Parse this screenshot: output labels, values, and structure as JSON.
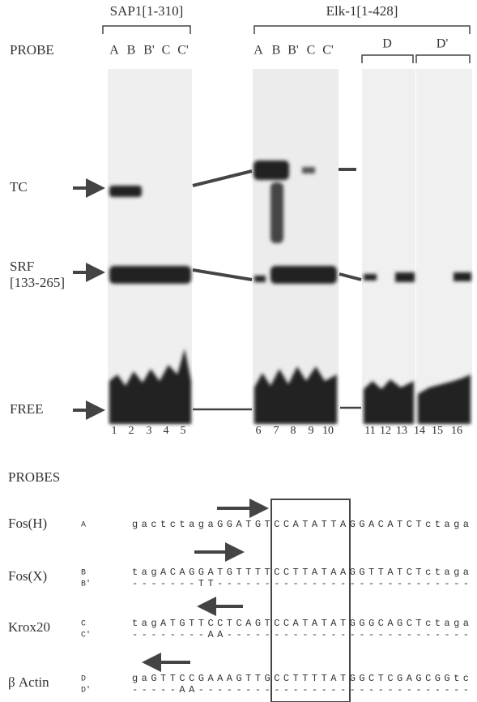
{
  "figure": {
    "headers": [
      "SAP1[1-310]",
      "Elk-1[1-428]"
    ],
    "probe_label": "PROBE",
    "lanes_1": [
      "A",
      "B",
      "B'",
      "C",
      "C'"
    ],
    "lanes_2": [
      "A",
      "B",
      "B'",
      "C",
      "C'"
    ],
    "lanes_3": [
      "D",
      "D'"
    ],
    "band_labels": {
      "tc": "TC",
      "srf": "SRF",
      "srf_range": "[133-265]",
      "free": "FREE"
    },
    "lane_numbers": [
      "1",
      "2",
      "3",
      "4",
      "5",
      "6",
      "7",
      "8",
      "9",
      "10",
      "11",
      "12",
      "13",
      "14",
      "15",
      "16"
    ]
  },
  "probes": {
    "title": "PROBES",
    "rows": [
      {
        "name": "Fos(H)",
        "entries": [
          {
            "id": "A",
            "seq": "gactctagaGGATGTCCATATTAGGACATCTctaga"
          }
        ]
      },
      {
        "name": "Fos(X)",
        "entries": [
          {
            "id": "B",
            "seq": "tagACAGGATGTTTTCCTTATAAGGTTATCTctaga"
          },
          {
            "id": "B'",
            "seq": "-------TT---------------------------"
          }
        ]
      },
      {
        "name": "Krox20",
        "entries": [
          {
            "id": "C",
            "seq": "tagATGTTCCTCAGTCCATATATGGGCAGCTctaga"
          },
          {
            "id": "C'",
            "seq": "--------AA--------------------------"
          }
        ]
      },
      {
        "name": "β Actin",
        "entries": [
          {
            "id": "D",
            "seq": "gaGTTCCGAAAGTTGCCTTTTATGGCTCGAGCGGtc"
          },
          {
            "id": "D'",
            "seq": "-----AA-----------------------------"
          }
        ]
      }
    ]
  }
}
